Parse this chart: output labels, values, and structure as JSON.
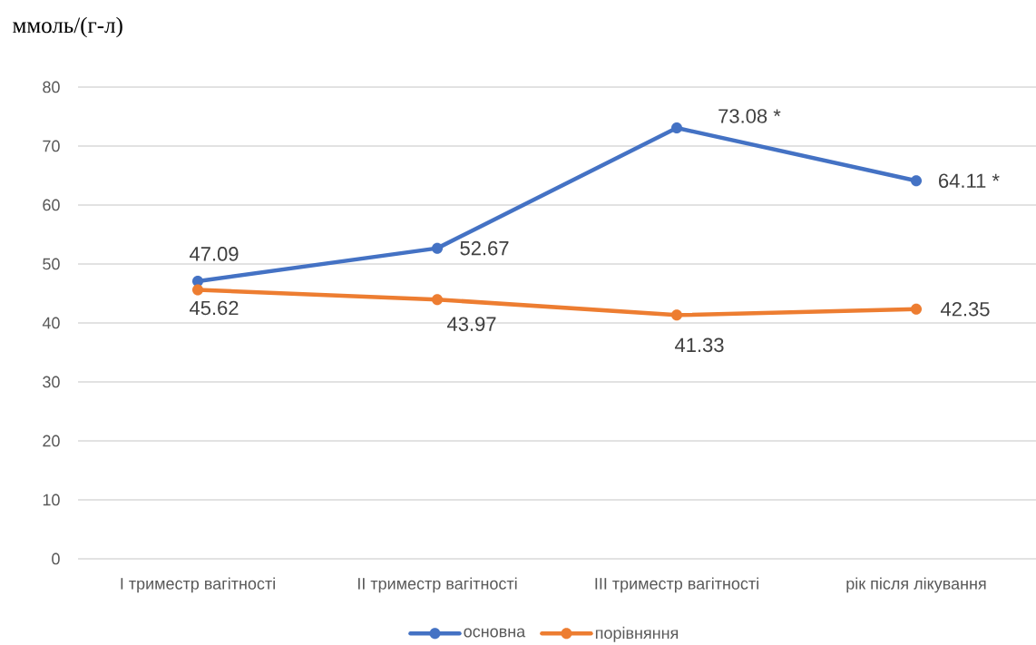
{
  "chart_data": {
    "type": "line",
    "ylabel": "ммоль/(г-л)",
    "categories": [
      "І триместр вагітності",
      "ІІ триместр вагітності",
      "ІІІ триместр вагітності",
      "рік після лікування"
    ],
    "series": [
      {
        "name": "основна",
        "color": "#4472c4",
        "values": [
          47.09,
          52.67,
          73.08,
          64.11
        ],
        "value_labels": [
          "47.09",
          "52.67",
          "73.08 *",
          "64.11 *"
        ]
      },
      {
        "name": "порівняння",
        "color": "#ed7d31",
        "values": [
          45.62,
          43.97,
          41.33,
          42.35
        ],
        "value_labels": [
          "45.62",
          "43.97",
          "41.33",
          "42.35"
        ]
      }
    ],
    "ylim": [
      0,
      80
    ],
    "yticks": [
      0,
      10,
      20,
      30,
      40,
      50,
      60,
      70,
      80
    ],
    "grid": "y",
    "legend": "bottom",
    "marker": "circle",
    "line_style": "solid"
  }
}
